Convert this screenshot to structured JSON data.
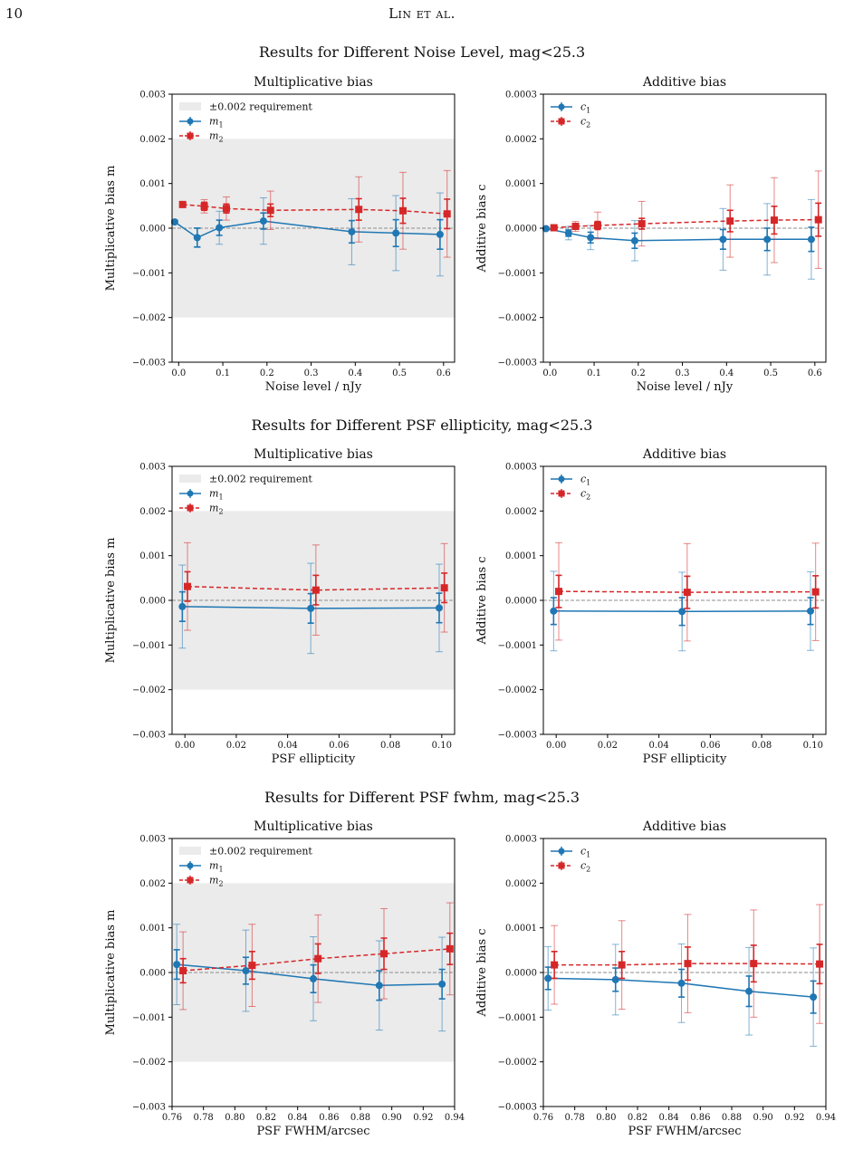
{
  "page": {
    "number": "10",
    "running_title": "Lin et al."
  },
  "rows": [
    {
      "title": "Results for Different Noise Level, mag<25.3"
    },
    {
      "title": "Results for Different PSF ellipticity, mag<25.3"
    },
    {
      "title": "Results for Different PSF fwhm, mag<25.3"
    }
  ],
  "colors": {
    "series1": "#1f77b4",
    "series2": "#d62728",
    "band": "#ebebeb",
    "zero_line": "#8c8c8c"
  },
  "chart_data": [
    {
      "type": "line",
      "row": 0,
      "col": 0,
      "title": "Multiplicative bias",
      "xlabel": "Noise level / nJy",
      "ylabel": "Multiplicative bias  m",
      "xlim": [
        -0.015,
        0.625
      ],
      "ylim": [
        -0.003,
        0.003
      ],
      "xticks": [
        0.0,
        0.1,
        0.2,
        0.3,
        0.4,
        0.5,
        0.6
      ],
      "xtick_labels": [
        "0.0",
        "0.1",
        "0.2",
        "0.3",
        "0.4",
        "0.5",
        "0.6"
      ],
      "yticks": [
        -0.003,
        -0.002,
        -0.001,
        0.0,
        0.001,
        0.002,
        0.003
      ],
      "ytick_labels": [
        "−0.003",
        "−0.002",
        "−0.001",
        "0.000",
        "0.001",
        "0.002",
        "0.003"
      ],
      "band": [
        -0.002,
        0.002
      ],
      "band_label": "±0.002 requirement",
      "zero_line": true,
      "legend": "upper-left",
      "series": [
        {
          "name": "m1",
          "label_main": "m",
          "label_sub": "1",
          "marker": "circle",
          "line": "solid",
          "color": "#1f77b4",
          "x": [
            -0.009,
            0.042,
            0.092,
            0.192,
            0.392,
            0.492,
            0.592
          ],
          "y": [
            0.00014,
            -0.00021,
            1e-05,
            0.00016,
            -8e-05,
            -0.00011,
            -0.00014
          ],
          "err_inner": [
            3e-05,
            0.00021,
            0.00017,
            0.00018,
            0.00025,
            0.0003,
            0.00033
          ],
          "err_outer": [
            4e-05,
            0.00022,
            0.00037,
            0.00052,
            0.00074,
            0.00084,
            0.00093
          ]
        },
        {
          "name": "m2",
          "label_main": "m",
          "label_sub": "2",
          "marker": "square",
          "line": "dashed",
          "color": "#d62728",
          "x": [
            0.009,
            0.058,
            0.108,
            0.208,
            0.408,
            0.508,
            0.608
          ],
          "y": [
            0.00053,
            0.00049,
            0.00044,
            0.0004,
            0.00042,
            0.00039,
            0.00032
          ],
          "err_inner": [
            4e-05,
            9e-05,
            0.0001,
            0.00014,
            0.00024,
            0.00028,
            0.00033
          ],
          "err_outer": [
            5e-05,
            0.00015,
            0.00026,
            0.00043,
            0.00073,
            0.00086,
            0.00097
          ]
        }
      ]
    },
    {
      "type": "line",
      "row": 0,
      "col": 1,
      "title": "Additive bias",
      "xlabel": "Noise level / nJy",
      "ylabel": "Additive bias  c",
      "xlim": [
        -0.015,
        0.625
      ],
      "ylim": [
        -0.0003,
        0.0003
      ],
      "xticks": [
        0.0,
        0.1,
        0.2,
        0.3,
        0.4,
        0.5,
        0.6
      ],
      "xtick_labels": [
        "0.0",
        "0.1",
        "0.2",
        "0.3",
        "0.4",
        "0.5",
        "0.6"
      ],
      "yticks": [
        -0.0003,
        -0.0002,
        -0.0001,
        0.0,
        0.0001,
        0.0002,
        0.0003
      ],
      "ytick_labels": [
        "−0.0003",
        "−0.0002",
        "−0.0001",
        "0.0000",
        "0.0001",
        "0.0002",
        "0.0003"
      ],
      "zero_line": true,
      "legend": "upper-left",
      "series": [
        {
          "name": "c1",
          "label_main": "c",
          "label_sub": "1",
          "marker": "circle",
          "line": "solid",
          "color": "#1f77b4",
          "x": [
            -0.009,
            0.042,
            0.092,
            0.192,
            0.392,
            0.492,
            0.592
          ],
          "y": [
            -1e-06,
            -1.1e-05,
            -2.1e-05,
            -2.8e-05,
            -2.5e-05,
            -2.5e-05,
            -2.5e-05
          ],
          "err_inner": [
            2e-06,
            7e-06,
            1.2e-05,
            1.7e-05,
            2.2e-05,
            2.5e-05,
            2.7e-05
          ],
          "err_outer": [
            3e-06,
            1.5e-05,
            2.7e-05,
            4.5e-05,
            6.9e-05,
            8e-05,
            8.9e-05
          ]
        },
        {
          "name": "c2",
          "label_main": "c",
          "label_sub": "2",
          "marker": "square",
          "line": "dashed",
          "color": "#d62728",
          "x": [
            0.009,
            0.058,
            0.108,
            0.208,
            0.408,
            0.508,
            0.608
          ],
          "y": [
            1e-06,
            4e-06,
            6e-06,
            1e-05,
            1.6e-05,
            1.8e-05,
            1.9e-05
          ],
          "err_inner": [
            2e-06,
            6e-06,
            9e-06,
            1.2e-05,
            2.4e-05,
            3.1e-05,
            3.7e-05
          ],
          "err_outer": [
            3e-06,
            1.1e-05,
            3e-05,
            5e-05,
            8.1e-05,
            9.5e-05,
            0.000109
          ]
        }
      ]
    },
    {
      "type": "line",
      "row": 1,
      "col": 0,
      "title": "Multiplicative bias",
      "xlabel": "PSF ellipticity",
      "ylabel": "Multiplicative bias  m",
      "xlim": [
        -0.005,
        0.105
      ],
      "ylim": [
        -0.003,
        0.003
      ],
      "xticks": [
        0.0,
        0.02,
        0.04,
        0.06,
        0.08,
        0.1
      ],
      "xtick_labels": [
        "0.00",
        "0.02",
        "0.04",
        "0.06",
        "0.08",
        "0.10"
      ],
      "yticks": [
        -0.003,
        -0.002,
        -0.001,
        0.0,
        0.001,
        0.002,
        0.003
      ],
      "ytick_labels": [
        "−0.003",
        "−0.002",
        "−0.001",
        "0.000",
        "0.001",
        "0.002",
        "0.003"
      ],
      "band": [
        -0.002,
        0.002
      ],
      "band_label": "±0.002 requirement",
      "zero_line": true,
      "legend": "upper-left",
      "series": [
        {
          "name": "m1",
          "label_main": "m",
          "label_sub": "1",
          "marker": "circle",
          "line": "solid",
          "color": "#1f77b4",
          "x": [
            -0.001,
            0.049,
            0.099
          ],
          "y": [
            -0.00014,
            -0.00018,
            -0.00017
          ],
          "err_inner": [
            0.00033,
            0.00033,
            0.00033
          ],
          "err_outer": [
            0.00093,
            0.00101,
            0.00098
          ]
        },
        {
          "name": "m2",
          "label_main": "m",
          "label_sub": "2",
          "marker": "square",
          "line": "dashed",
          "color": "#d62728",
          "x": [
            0.001,
            0.051,
            0.101
          ],
          "y": [
            0.00031,
            0.00023,
            0.00028
          ],
          "err_inner": [
            0.00033,
            0.00033,
            0.00033
          ],
          "err_outer": [
            0.00098,
            0.00101,
            0.00099
          ]
        }
      ]
    },
    {
      "type": "line",
      "row": 1,
      "col": 1,
      "title": "Additive bias",
      "xlabel": "PSF ellipticity",
      "ylabel": "Additive bias  c",
      "xlim": [
        -0.005,
        0.105
      ],
      "ylim": [
        -0.0003,
        0.0003
      ],
      "xticks": [
        0.0,
        0.02,
        0.04,
        0.06,
        0.08,
        0.1
      ],
      "xtick_labels": [
        "0.00",
        "0.02",
        "0.04",
        "0.06",
        "0.08",
        "0.10"
      ],
      "yticks": [
        -0.0003,
        -0.0002,
        -0.0001,
        0.0,
        0.0001,
        0.0002,
        0.0003
      ],
      "ytick_labels": [
        "−0.0003",
        "−0.0002",
        "−0.0001",
        "0.0000",
        "0.0001",
        "0.0002",
        "0.0003"
      ],
      "zero_line": true,
      "legend": "upper-left",
      "series": [
        {
          "name": "c1",
          "label_main": "c",
          "label_sub": "1",
          "marker": "circle",
          "line": "solid",
          "color": "#1f77b4",
          "x": [
            -0.001,
            0.049,
            0.099
          ],
          "y": [
            -2.4e-05,
            -2.5e-05,
            -2.4e-05
          ],
          "err_inner": [
            3e-05,
            3.1e-05,
            3e-05
          ],
          "err_outer": [
            8.9e-05,
            8.8e-05,
            8.8e-05
          ]
        },
        {
          "name": "c2",
          "label_main": "c",
          "label_sub": "2",
          "marker": "square",
          "line": "dashed",
          "color": "#d62728",
          "x": [
            0.001,
            0.051,
            0.101
          ],
          "y": [
            2e-05,
            1.8e-05,
            1.9e-05
          ],
          "err_inner": [
            3.6e-05,
            3.6e-05,
            3.6e-05
          ],
          "err_outer": [
            0.000109,
            0.000109,
            0.000109
          ]
        }
      ]
    },
    {
      "type": "line",
      "row": 2,
      "col": 0,
      "title": "Multiplicative bias",
      "xlabel": "PSF FWHM/arcsec",
      "ylabel": "Multiplicative bias  m",
      "xlim": [
        0.76,
        0.94
      ],
      "ylim": [
        -0.003,
        0.003
      ],
      "xticks": [
        0.76,
        0.78,
        0.8,
        0.82,
        0.84,
        0.86,
        0.88,
        0.9,
        0.92,
        0.94
      ],
      "xtick_labels": [
        "0.76",
        "0.78",
        "0.80",
        "0.82",
        "0.84",
        "0.86",
        "0.88",
        "0.90",
        "0.92",
        "0.94"
      ],
      "yticks": [
        -0.003,
        -0.002,
        -0.001,
        0.0,
        0.001,
        0.002,
        0.003
      ],
      "ytick_labels": [
        "−0.003",
        "−0.002",
        "−0.001",
        "0.000",
        "0.001",
        "0.002",
        "0.003"
      ],
      "band": [
        -0.002,
        0.002
      ],
      "band_label": "±0.002 requirement",
      "zero_line": true,
      "legend": "upper-left",
      "series": [
        {
          "name": "m1",
          "label_main": "m",
          "label_sub": "1",
          "marker": "circle",
          "line": "solid",
          "color": "#1f77b4",
          "x": [
            0.763,
            0.807,
            0.85,
            0.892,
            0.932
          ],
          "y": [
            0.00018,
            4e-05,
            -0.00014,
            -0.00029,
            -0.00026
          ],
          "err_inner": [
            0.00033,
            0.0003,
            0.00031,
            0.00033,
            0.00033
          ],
          "err_outer": [
            0.0009,
            0.00091,
            0.00094,
            0.001,
            0.00105
          ]
        },
        {
          "name": "m2",
          "label_main": "m",
          "label_sub": "2",
          "marker": "square",
          "line": "dashed",
          "color": "#d62728",
          "x": [
            0.767,
            0.811,
            0.853,
            0.895,
            0.937
          ],
          "y": [
            4e-05,
            0.00016,
            0.00031,
            0.00042,
            0.00053
          ],
          "err_inner": [
            0.00027,
            0.00031,
            0.00033,
            0.00035,
            0.00035
          ],
          "err_outer": [
            0.00087,
            0.00092,
            0.00098,
            0.00101,
            0.00103
          ]
        }
      ]
    },
    {
      "type": "line",
      "row": 2,
      "col": 1,
      "title": "Additive bias",
      "xlabel": "PSF FWHM/arcsec",
      "ylabel": "Additive bias  c",
      "xlim": [
        0.76,
        0.94
      ],
      "ylim": [
        -0.0003,
        0.0003
      ],
      "xticks": [
        0.76,
        0.78,
        0.8,
        0.82,
        0.84,
        0.86,
        0.88,
        0.9,
        0.92,
        0.94
      ],
      "xtick_labels": [
        "0.76",
        "0.78",
        "0.80",
        "0.82",
        "0.84",
        "0.86",
        "0.88",
        "0.90",
        "0.92",
        "0.94"
      ],
      "yticks": [
        -0.0003,
        -0.0002,
        -0.0001,
        0.0,
        0.0001,
        0.0002,
        0.0003
      ],
      "ytick_labels": [
        "−0.0003",
        "−0.0002",
        "−0.0001",
        "0.0000",
        "0.0001",
        "0.0002",
        "0.0003"
      ],
      "zero_line": true,
      "legend": "upper-left",
      "series": [
        {
          "name": "c1",
          "label_main": "c",
          "label_sub": "1",
          "marker": "circle",
          "line": "solid",
          "color": "#1f77b4",
          "x": [
            0.763,
            0.806,
            0.848,
            0.891,
            0.932
          ],
          "y": [
            -1.3e-05,
            -1.6e-05,
            -2.4e-05,
            -4.2e-05,
            -5.5e-05
          ],
          "err_inner": [
            2.5e-05,
            2.6e-05,
            3.1e-05,
            3.4e-05,
            3.6e-05
          ],
          "err_outer": [
            7.1e-05,
            7.9e-05,
            8.8e-05,
            9.8e-05,
            0.00011
          ]
        },
        {
          "name": "c2",
          "label_main": "c",
          "label_sub": "2",
          "marker": "square",
          "line": "dashed",
          "color": "#d62728",
          "x": [
            0.767,
            0.81,
            0.852,
            0.894,
            0.936
          ],
          "y": [
            1.7e-05,
            1.7e-05,
            2e-05,
            2e-05,
            1.9e-05
          ],
          "err_inner": [
            3e-05,
            3e-05,
            3.7e-05,
            4.1e-05,
            4.4e-05
          ],
          "err_outer": [
            8.8e-05,
            9.9e-05,
            0.00011,
            0.00012,
            0.000133
          ]
        }
      ]
    }
  ]
}
